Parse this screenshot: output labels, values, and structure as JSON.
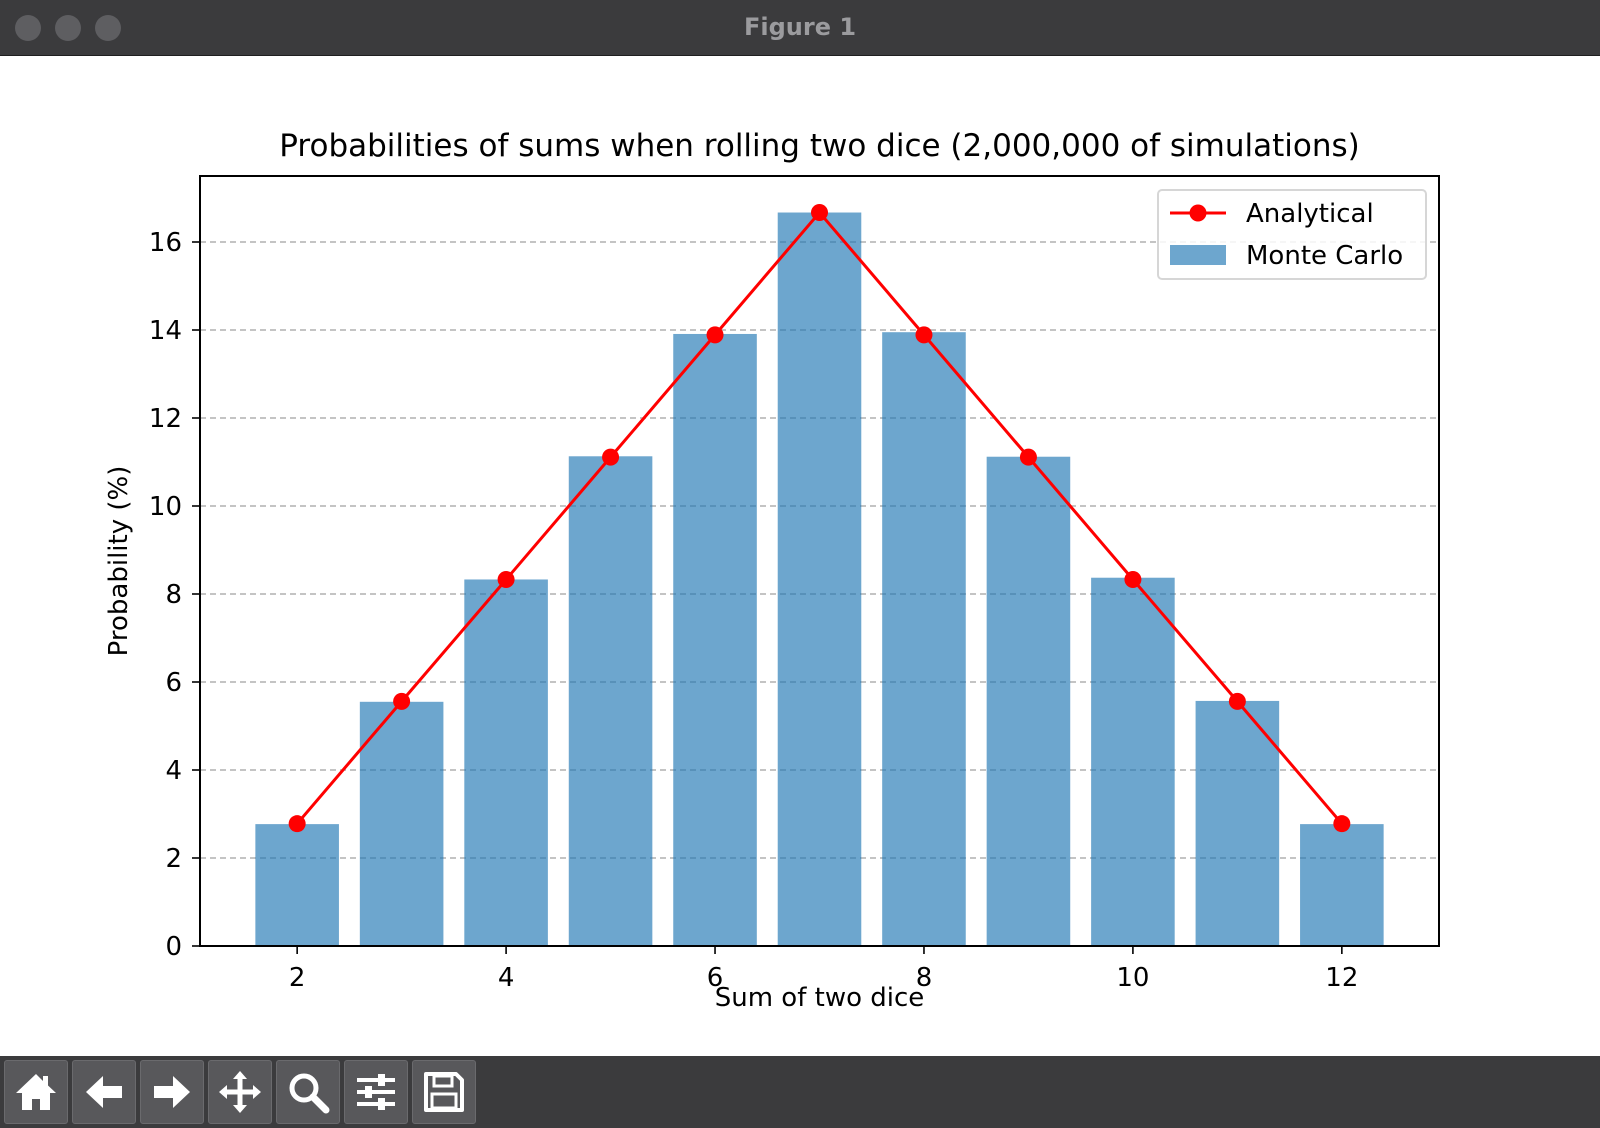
{
  "window": {
    "title": "Figure 1"
  },
  "toolbar": {
    "buttons": [
      {
        "name": "home-button",
        "icon": "home-icon"
      },
      {
        "name": "back-button",
        "icon": "arrow-left-icon"
      },
      {
        "name": "forward-button",
        "icon": "arrow-right-icon"
      },
      {
        "name": "pan-button",
        "icon": "move-icon"
      },
      {
        "name": "zoom-button",
        "icon": "magnifier-icon"
      },
      {
        "name": "configure-subplots-button",
        "icon": "sliders-icon"
      },
      {
        "name": "save-button",
        "icon": "floppy-disk-icon"
      }
    ]
  },
  "chart_data": {
    "type": "bar",
    "title": "Probabilities of sums when rolling two dice (2,000,000 of simulations)",
    "xlabel": "Sum of two dice",
    "ylabel": "Probability (%)",
    "x": [
      2,
      3,
      4,
      5,
      6,
      7,
      8,
      9,
      10,
      11,
      12
    ],
    "xticks": [
      2,
      4,
      6,
      8,
      10,
      12
    ],
    "yticks": [
      0,
      2,
      4,
      6,
      8,
      10,
      12,
      14,
      16
    ],
    "xlim": [
      1.07,
      12.93
    ],
    "ylim": [
      0,
      17.5
    ],
    "grid": "y-dashed",
    "legend": "top-right",
    "series": [
      {
        "name": "Analytical",
        "type": "line",
        "color": "#ff0000",
        "marker": "circle",
        "values": [
          2.78,
          5.56,
          8.33,
          11.11,
          13.89,
          16.67,
          13.89,
          11.11,
          8.33,
          5.56,
          2.78
        ]
      },
      {
        "name": "Monte Carlo",
        "type": "bar",
        "color": "#1f77b4",
        "opacity": 0.65,
        "values": [
          2.77,
          5.55,
          8.33,
          11.13,
          13.91,
          16.67,
          13.95,
          11.12,
          8.37,
          5.57,
          2.77
        ]
      }
    ]
  }
}
